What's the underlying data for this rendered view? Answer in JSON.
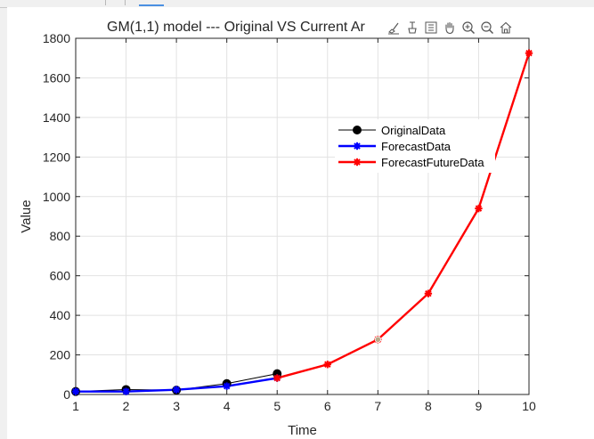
{
  "toolbar": {
    "icons": [
      "brush-icon",
      "data-tips-icon",
      "legend-box-icon",
      "pan-hand-icon",
      "zoom-in-icon",
      "zoom-out-icon",
      "home-icon"
    ]
  },
  "chart_data": {
    "type": "line",
    "title": "GM(1,1) model --- Original VS Current Ar",
    "xlabel": "Time",
    "ylabel": "Value",
    "xlim": [
      1,
      10
    ],
    "ylim": [
      0,
      1800
    ],
    "xticks": [
      1,
      2,
      3,
      4,
      5,
      6,
      7,
      8,
      9,
      10
    ],
    "yticks": [
      0,
      200,
      400,
      600,
      800,
      1000,
      1200,
      1400,
      1600,
      1800
    ],
    "grid": true,
    "legend_position": "upper-right",
    "series": [
      {
        "name": "OriginalData",
        "color": "#000000",
        "marker": "circle",
        "x": [
          1,
          2,
          3,
          4,
          5
        ],
        "y": [
          15,
          25,
          22,
          55,
          105
        ]
      },
      {
        "name": "ForecastData",
        "color": "#0000ff",
        "marker": "asterisk",
        "x": [
          1,
          2,
          3,
          4,
          5
        ],
        "y": [
          15,
          15,
          24,
          42,
          83
        ]
      },
      {
        "name": "ForecastFutureData",
        "color": "#ff0000",
        "marker": "asterisk",
        "x": [
          5,
          6,
          7,
          8,
          9,
          10
        ],
        "y": [
          83,
          152,
          278,
          510,
          940,
          1725
        ]
      }
    ],
    "annotations": [
      {
        "x": 7,
        "y": 278,
        "color": "#b8a888"
      }
    ]
  }
}
